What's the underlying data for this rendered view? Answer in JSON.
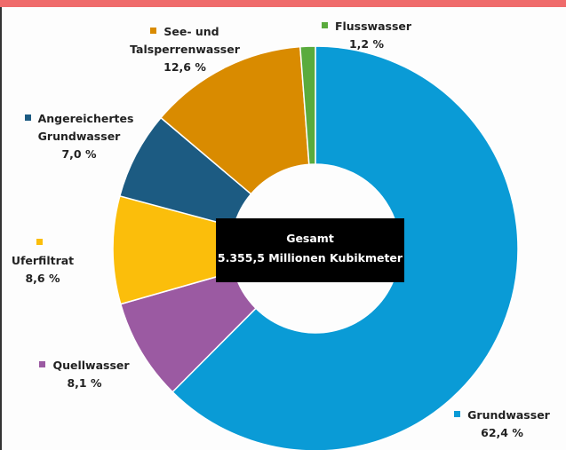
{
  "chart_data": {
    "type": "donut",
    "center_title": "Gesamt",
    "center_subtitle": "5.355,5 Millionen Kubikmeter",
    "categories": [
      "Grundwasser",
      "Quellwasser",
      "Uferfiltrat",
      "Angereichertes Grundwasser",
      "See- und Talsperrenwasser",
      "Flusswasser"
    ],
    "values": [
      62.4,
      8.1,
      8.6,
      7.0,
      12.6,
      1.2
    ],
    "value_labels": [
      "62,4 %",
      "8,1 %",
      "8,6 %",
      "7,0 %",
      "12,6 %",
      "1,2 %"
    ],
    "colors": [
      "#0a9bd6",
      "#9b5aa2",
      "#fbbe0b",
      "#1c5b82",
      "#d98b00",
      "#5aab3d"
    ]
  }
}
